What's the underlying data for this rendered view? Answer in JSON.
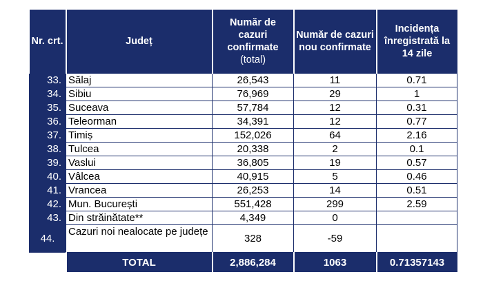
{
  "headers": {
    "nr": "Nr. crt.",
    "judet": "Județ",
    "total_line1": "Număr de cazuri confirmate",
    "total_line2": "(total)",
    "new": "Număr de cazuri nou confirmate",
    "incidence": "Incidența înregistrată la 14 zile"
  },
  "rows": [
    {
      "nr": "33.",
      "judet": "Sălaj",
      "total": "26,543",
      "new": "11",
      "incidence": "0.71"
    },
    {
      "nr": "34.",
      "judet": "Sibiu",
      "total": "76,969",
      "new": "29",
      "incidence": "1"
    },
    {
      "nr": "35.",
      "judet": "Suceava",
      "total": "57,784",
      "new": "12",
      "incidence": "0.31"
    },
    {
      "nr": "36.",
      "judet": "Teleorman",
      "total": "34,391",
      "new": "12",
      "incidence": "0.77"
    },
    {
      "nr": "37.",
      "judet": "Timiș",
      "total": "152,026",
      "new": "64",
      "incidence": "2.16"
    },
    {
      "nr": "38.",
      "judet": "Tulcea",
      "total": "20,338",
      "new": "2",
      "incidence": "0.1"
    },
    {
      "nr": "39.",
      "judet": "Vaslui",
      "total": "36,805",
      "new": "19",
      "incidence": "0.57"
    },
    {
      "nr": "40.",
      "judet": "Vâlcea",
      "total": "40,915",
      "new": "5",
      "incidence": "0.46"
    },
    {
      "nr": "41.",
      "judet": "Vrancea",
      "total": "26,253",
      "new": "14",
      "incidence": "0.51"
    },
    {
      "nr": "42.",
      "judet": "Mun. București",
      "total": "551,428",
      "new": "299",
      "incidence": "2.59"
    },
    {
      "nr": "43.",
      "judet": "Din străinătate**",
      "total": "4,349",
      "new": "0",
      "incidence": ""
    },
    {
      "nr": "44.",
      "judet": "Cazuri noi nealocate pe județe",
      "total": "328",
      "new": "-59",
      "incidence": ""
    }
  ],
  "total": {
    "label": "TOTAL",
    "total": "2,886,284",
    "new": "1063",
    "incidence": "0.71357143"
  },
  "colors": {
    "header_bg": "#1b2d6b",
    "header_text": "#ffffff"
  }
}
